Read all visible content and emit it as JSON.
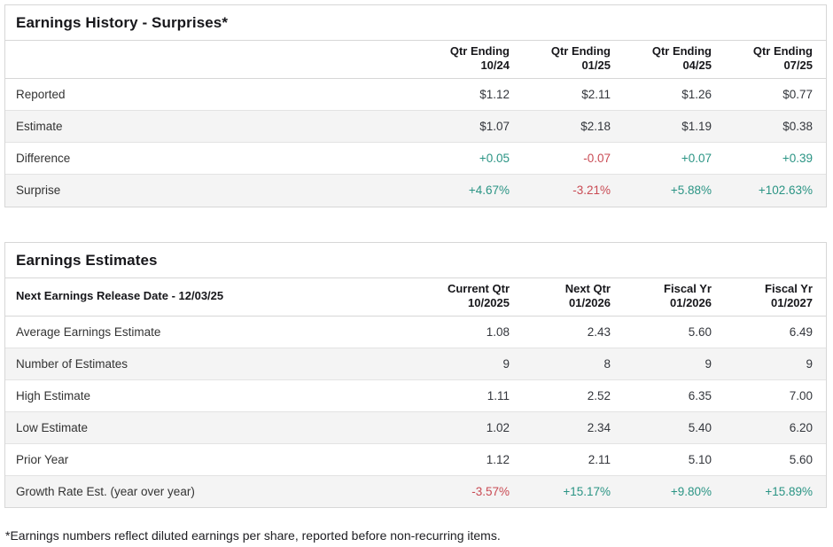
{
  "colors": {
    "positive": "#2a9484",
    "negative": "#c94a53"
  },
  "earnings_history": {
    "title": "Earnings History - Surprises*",
    "header_label": "",
    "columns": [
      {
        "line1": "Qtr Ending",
        "line2": "10/24"
      },
      {
        "line1": "Qtr Ending",
        "line2": "01/25"
      },
      {
        "line1": "Qtr Ending",
        "line2": "04/25"
      },
      {
        "line1": "Qtr Ending",
        "line2": "07/25"
      }
    ],
    "rows": [
      {
        "label": "Reported",
        "values": [
          "$1.12",
          "$2.11",
          "$1.26",
          "$0.77"
        ]
      },
      {
        "label": "Estimate",
        "values": [
          "$1.07",
          "$2.18",
          "$1.19",
          "$0.38"
        ]
      },
      {
        "label": "Difference",
        "values": [
          "+0.05",
          "-0.07",
          "+0.07",
          "+0.39"
        ],
        "sentiments": [
          "positive",
          "negative",
          "positive",
          "positive"
        ]
      },
      {
        "label": "Surprise",
        "values": [
          "+4.67%",
          "-3.21%",
          "+5.88%",
          "+102.63%"
        ],
        "sentiments": [
          "positive",
          "negative",
          "positive",
          "positive"
        ]
      }
    ]
  },
  "earnings_estimates": {
    "title": "Earnings Estimates",
    "header_label": "Next Earnings Release Date - 12/03/25",
    "columns": [
      {
        "line1": "Current Qtr",
        "line2": "10/2025"
      },
      {
        "line1": "Next Qtr",
        "line2": "01/2026"
      },
      {
        "line1": "Fiscal Yr",
        "line2": "01/2026"
      },
      {
        "line1": "Fiscal Yr",
        "line2": "01/2027"
      }
    ],
    "rows": [
      {
        "label": "Average Earnings Estimate",
        "values": [
          "1.08",
          "2.43",
          "5.60",
          "6.49"
        ]
      },
      {
        "label": "Number of Estimates",
        "values": [
          "9",
          "8",
          "9",
          "9"
        ]
      },
      {
        "label": "High Estimate",
        "values": [
          "1.11",
          "2.52",
          "6.35",
          "7.00"
        ]
      },
      {
        "label": "Low Estimate",
        "values": [
          "1.02",
          "2.34",
          "5.40",
          "6.20"
        ]
      },
      {
        "label": "Prior Year",
        "values": [
          "1.12",
          "2.11",
          "5.10",
          "5.60"
        ]
      },
      {
        "label": "Growth Rate Est. (year over year)",
        "values": [
          "-3.57%",
          "+15.17%",
          "+9.80%",
          "+15.89%"
        ],
        "sentiments": [
          "negative",
          "positive",
          "positive",
          "positive"
        ]
      }
    ]
  },
  "footnote": "*Earnings numbers reflect diluted earnings per share, reported before non-recurring items."
}
